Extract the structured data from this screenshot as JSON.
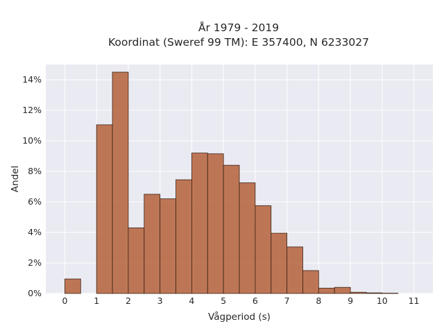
{
  "chart_data": {
    "type": "bar",
    "title": [
      "År 1979 - 2019",
      "Koordinat (Sweref 99 TM): E 357400, N 6233027"
    ],
    "xlabel": "Vågperiod (s)",
    "ylabel": "Andel",
    "xlim": [
      -0.6,
      11.6
    ],
    "ylim": [
      0,
      15
    ],
    "grid": true,
    "x_ticks": [
      0,
      1,
      2,
      3,
      4,
      5,
      6,
      7,
      8,
      9,
      10,
      11
    ],
    "y_ticks": [
      0,
      2,
      4,
      6,
      8,
      10,
      12,
      14
    ],
    "y_tick_labels": [
      "0%",
      "2%",
      "4%",
      "6%",
      "8%",
      "10%",
      "12%",
      "14%"
    ],
    "bar_width": 0.5,
    "bins": [
      {
        "x": 0.0,
        "value": 0.95
      },
      {
        "x": 0.5,
        "value": 0.0
      },
      {
        "x": 1.0,
        "value": 11.05
      },
      {
        "x": 1.5,
        "value": 14.5
      },
      {
        "x": 2.0,
        "value": 4.3
      },
      {
        "x": 2.5,
        "value": 6.5
      },
      {
        "x": 3.0,
        "value": 6.2
      },
      {
        "x": 3.5,
        "value": 7.45
      },
      {
        "x": 4.0,
        "value": 9.2
      },
      {
        "x": 4.5,
        "value": 9.15
      },
      {
        "x": 5.0,
        "value": 8.4
      },
      {
        "x": 5.5,
        "value": 7.25
      },
      {
        "x": 6.0,
        "value": 5.75
      },
      {
        "x": 6.5,
        "value": 3.95
      },
      {
        "x": 7.0,
        "value": 3.05
      },
      {
        "x": 7.5,
        "value": 1.5
      },
      {
        "x": 8.0,
        "value": 0.35
      },
      {
        "x": 8.5,
        "value": 0.4
      },
      {
        "x": 9.0,
        "value": 0.08
      },
      {
        "x": 9.5,
        "value": 0.04
      },
      {
        "x": 10.0,
        "value": 0.02
      }
    ],
    "colors": {
      "bar": "#b5623a",
      "bar_edge": "#3a2216",
      "plot_background": "#eaeaf2",
      "grid": "#ffffff"
    }
  }
}
